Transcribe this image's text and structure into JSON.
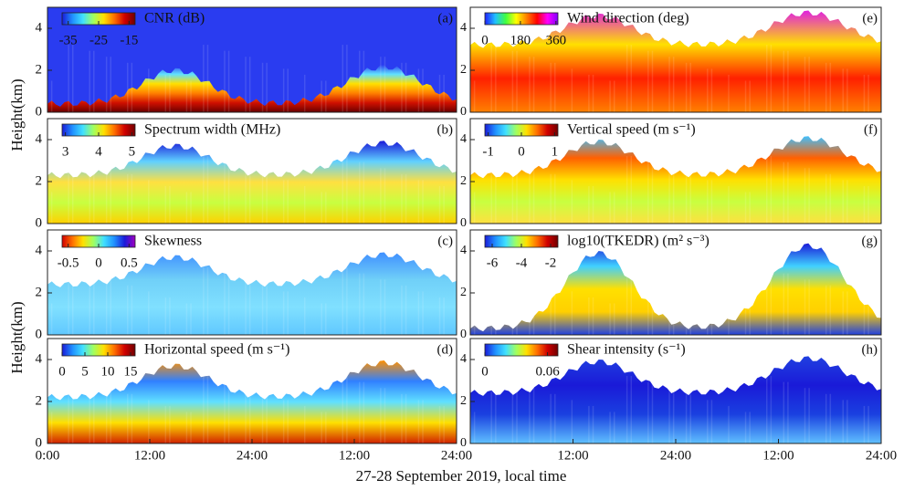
{
  "xlabel": "27-28 September 2019, local time",
  "ylabels": [
    "Height(km)",
    "Height(km)"
  ],
  "chart_data": [
    {
      "type": "heatmap",
      "title": "CNR (dB)",
      "letter": "(a)",
      "xlim": [
        0,
        48
      ],
      "ylim": [
        0,
        5
      ],
      "yticks": [
        0,
        2,
        4
      ],
      "colorbar": {
        "lim": [
          -37,
          -13
        ],
        "ticks": [
          -35,
          -25,
          -15
        ],
        "colors": [
          "#1a1ad8",
          "#2090ff",
          "#40e0ff",
          "#a0ff60",
          "#ffe000",
          "#ff7000",
          "#d00000",
          "#700000"
        ]
      }
    },
    {
      "type": "heatmap",
      "title": "Spectrum width (MHz)",
      "letter": "(b)",
      "xlim": [
        0,
        48
      ],
      "ylim": [
        0,
        5
      ],
      "yticks": [
        0,
        2,
        4
      ],
      "colorbar": {
        "lim": [
          2.9,
          5.1
        ],
        "ticks": [
          3,
          4,
          5
        ],
        "colors": [
          "#1a1ad8",
          "#2090ff",
          "#40e0ff",
          "#a0ff60",
          "#ffe000",
          "#ff7000",
          "#d00000",
          "#700000"
        ]
      }
    },
    {
      "type": "heatmap",
      "title": "Skewness",
      "letter": "(c)",
      "xlim": [
        0,
        48
      ],
      "ylim": [
        0,
        5
      ],
      "yticks": [
        0,
        2,
        4
      ],
      "colorbar": {
        "lim": [
          -0.6,
          0.6
        ],
        "ticks": [
          -0.5,
          0,
          0.5
        ],
        "colors": [
          "#d00000",
          "#ff7000",
          "#ffe000",
          "#a0ff60",
          "#40e0ff",
          "#2090ff",
          "#1a1ad8",
          "#a000c0"
        ]
      }
    },
    {
      "type": "heatmap",
      "title": "Horizontal speed (m s⁻¹)",
      "letter": "(d)",
      "xlim": [
        0,
        48
      ],
      "ylim": [
        0,
        5
      ],
      "yticks": [
        0,
        2,
        4
      ],
      "xticks": [
        {
          "value": 0,
          "label": "0:00"
        },
        {
          "value": 12,
          "label": "12:00"
        },
        {
          "value": 24,
          "label": "24:00"
        },
        {
          "value": 36,
          "label": "12:00"
        },
        {
          "value": 48,
          "label": "24:00"
        }
      ],
      "colorbar": {
        "lim": [
          0,
          16
        ],
        "ticks": [
          0,
          5,
          10,
          15
        ],
        "colors": [
          "#1a1ad8",
          "#2090ff",
          "#40e0ff",
          "#a0ff60",
          "#ffe000",
          "#ff7000",
          "#d00000",
          "#700000"
        ]
      }
    },
    {
      "type": "heatmap",
      "title": "Wind direction (deg)",
      "letter": "(e)",
      "xlim": [
        0,
        48
      ],
      "ylim": [
        0,
        5
      ],
      "yticks": [
        0,
        2,
        4
      ],
      "colorbar": {
        "lim": [
          0,
          370
        ],
        "ticks": [
          0,
          180,
          360
        ],
        "colors": [
          "#2020ff",
          "#20c0ff",
          "#40ff40",
          "#ffff00",
          "#ff8000",
          "#ff0000",
          "#ff00ff",
          "#8000ff"
        ]
      }
    },
    {
      "type": "heatmap",
      "title": "Vertical speed (m s⁻¹)",
      "letter": "(f)",
      "xlim": [
        0,
        48
      ],
      "ylim": [
        0,
        5
      ],
      "yticks": [
        0,
        2,
        4
      ],
      "colorbar": {
        "lim": [
          -1.1,
          1.1
        ],
        "ticks": [
          -1,
          0,
          1
        ],
        "colors": [
          "#1a1ad8",
          "#2090ff",
          "#40e0ff",
          "#a0ff60",
          "#ffe000",
          "#ff7000",
          "#d00000",
          "#700000"
        ]
      }
    },
    {
      "type": "heatmap",
      "title": "log10(TKEDR) (m² s⁻³)",
      "letter": "(g)",
      "xlim": [
        0,
        48
      ],
      "ylim": [
        0,
        5
      ],
      "yticks": [
        0,
        2,
        4
      ],
      "colorbar": {
        "lim": [
          -6.5,
          -1.5
        ],
        "ticks": [
          -6,
          -4,
          -2
        ],
        "colors": [
          "#1a1ad8",
          "#2090ff",
          "#40e0ff",
          "#a0ff60",
          "#ffe000",
          "#ff7000",
          "#d00000",
          "#700000"
        ]
      }
    },
    {
      "type": "heatmap",
      "title": "Shear intensity (s⁻¹)",
      "letter": "(h)",
      "xlim": [
        0,
        48
      ],
      "ylim": [
        0,
        5
      ],
      "yticks": [
        0,
        2,
        4
      ],
      "xticks": [
        {
          "value": 12,
          "label": "12:00"
        },
        {
          "value": 24,
          "label": "24:00"
        },
        {
          "value": 36,
          "label": "12:00"
        },
        {
          "value": 48,
          "label": "24:00"
        }
      ],
      "colorbar": {
        "lim": [
          0,
          0.07
        ],
        "ticks": [
          0,
          0.06
        ],
        "colors": [
          "#1a1ad8",
          "#2090ff",
          "#40e0ff",
          "#a0ff60",
          "#ffe000",
          "#ff7000",
          "#d00000",
          "#700000"
        ]
      }
    }
  ]
}
